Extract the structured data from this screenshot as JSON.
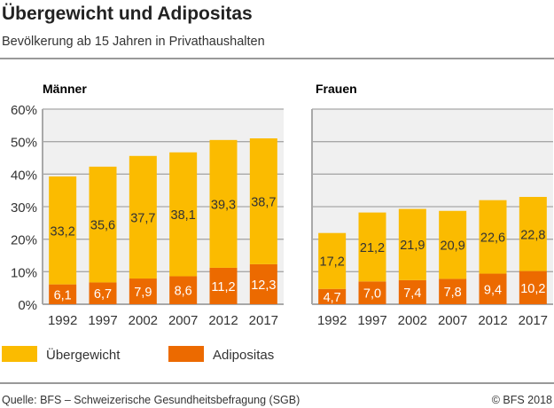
{
  "title": "Übergewicht und Adipositas",
  "subtitle": "Bevölkerung ab 15 Jahren in Privathaushalten",
  "source": "Quelle: BFS – Schweizerische Gesundheitsbefragung (SGB)",
  "copyright": "© BFS 2018",
  "colors": {
    "Übergewicht": "#fbbb00",
    "Adipositas": "#ec6a00",
    "panel": "#f0f0f0",
    "grid": "#a8a8a8"
  },
  "chart_data": [
    {
      "type": "bar",
      "stacked": true,
      "title": "Männer",
      "categories": [
        "1992",
        "1997",
        "2002",
        "2007",
        "2012",
        "2017"
      ],
      "yticks": [
        "0%",
        "10%",
        "20%",
        "30%",
        "40%",
        "50%",
        "60%"
      ],
      "ylim": [
        0,
        60
      ],
      "grid": true,
      "legend": "bottom-left",
      "series": [
        {
          "name": "Adipositas",
          "values": [
            6.1,
            6.7,
            7.9,
            8.6,
            11.2,
            12.3
          ],
          "labels": [
            "6,1",
            "6,7",
            "7,9",
            "8,6",
            "11,2",
            "12,3"
          ]
        },
        {
          "name": "Übergewicht",
          "values": [
            33.2,
            35.6,
            37.7,
            38.1,
            39.3,
            38.7
          ],
          "labels": [
            "33,2",
            "35,6",
            "37,7",
            "38,1",
            "39,3",
            "38,7"
          ]
        }
      ]
    },
    {
      "type": "bar",
      "stacked": true,
      "title": "Frauen",
      "categories": [
        "1992",
        "1997",
        "2002",
        "2007",
        "2012",
        "2017"
      ],
      "ylim": [
        0,
        60
      ],
      "grid": true,
      "series": [
        {
          "name": "Adipositas",
          "values": [
            4.7,
            7.0,
            7.4,
            7.8,
            9.4,
            10.2
          ],
          "labels": [
            "4,7",
            "7,0",
            "7,4",
            "7,8",
            "9,4",
            "10,2"
          ]
        },
        {
          "name": "Übergewicht",
          "values": [
            17.2,
            21.2,
            21.9,
            20.9,
            22.6,
            22.8
          ],
          "labels": [
            "17,2",
            "21,2",
            "21,9",
            "20,9",
            "22,6",
            "22,8"
          ]
        }
      ]
    }
  ]
}
